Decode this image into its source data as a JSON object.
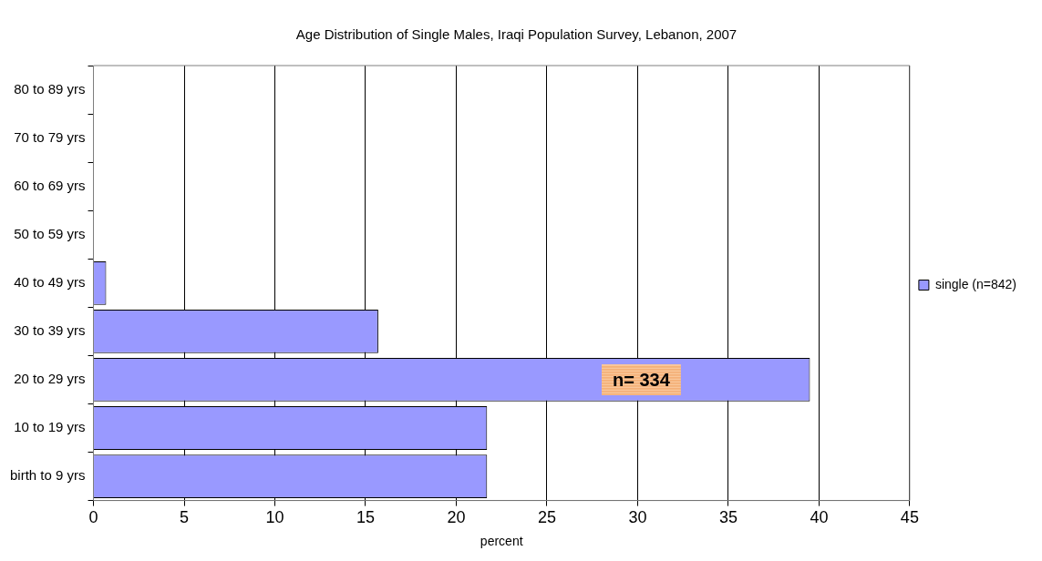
{
  "chart_data": {
    "type": "bar",
    "orientation": "horizontal",
    "title": "Age Distribution of Single Males, Iraqi Population Survey, Lebanon, 2007",
    "xlabel": "percent",
    "categories": [
      "80 to 89 yrs",
      "70 to 79 yrs",
      "60 to 69 yrs",
      "50 to 59 yrs",
      "40 to 49 yrs",
      "30 to 39 yrs",
      "20 to 29 yrs",
      "10 to 19 yrs",
      "birth to 9 yrs"
    ],
    "series": [
      {
        "name": "single (n=842)",
        "color": "#9999ff",
        "values": [
          0,
          0,
          0,
          0,
          0.7,
          15.7,
          39.5,
          21.7,
          21.7
        ]
      }
    ],
    "xlim": [
      0,
      45
    ],
    "xticks": [
      0,
      5,
      10,
      15,
      20,
      25,
      30,
      35,
      40,
      45
    ],
    "grid": "x",
    "legend": "right",
    "annotations": [
      {
        "text": "n= 334",
        "x": 30.2,
        "y": "20 to 29 yrs"
      }
    ]
  }
}
